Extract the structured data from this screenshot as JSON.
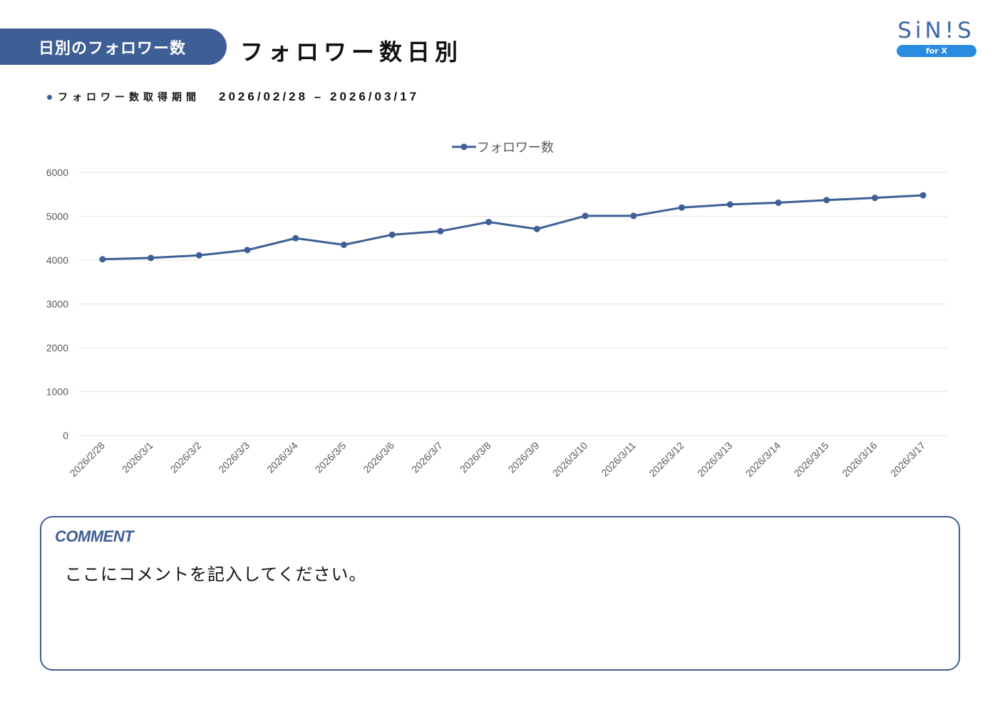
{
  "header": {
    "tab_label": "日別のフォロワー数",
    "title": "フォロワー数日別"
  },
  "logo": {
    "wordmark": "SiN!S",
    "badge": "for X"
  },
  "period": {
    "label": "フォロワー数取得期間",
    "range": "2026/02/28 – 2026/03/17"
  },
  "colors": {
    "accent": "#3e5f96",
    "badge": "#2a8ce0",
    "grid": "#e3e3e3",
    "axis_text": "#595959"
  },
  "chart_data": {
    "type": "line",
    "title": "",
    "legend": "top-center",
    "xlabel": "",
    "ylabel": "",
    "ylim": [
      0,
      6000
    ],
    "yticks": [
      0,
      1000,
      2000,
      3000,
      4000,
      5000,
      6000
    ],
    "grid": true,
    "categories": [
      "2026/2/28",
      "2026/3/1",
      "2026/3/2",
      "2026/3/3",
      "2026/3/4",
      "2026/3/5",
      "2026/3/6",
      "2026/3/7",
      "2026/3/8",
      "2026/3/9",
      "2026/3/10",
      "2026/3/11",
      "2026/3/12",
      "2026/3/13",
      "2026/3/14",
      "2026/3/15",
      "2026/3/16",
      "2026/3/17"
    ],
    "series": [
      {
        "name": "フォロワー数",
        "values": [
          4020,
          4050,
          4110,
          4230,
          4500,
          4350,
          4580,
          4660,
          4870,
          4710,
          5010,
          5010,
          5200,
          5270,
          5310,
          5370,
          5420,
          5480
        ]
      }
    ]
  },
  "comment": {
    "heading": "COMMENT",
    "text": "ここにコメントを記入してください。"
  }
}
